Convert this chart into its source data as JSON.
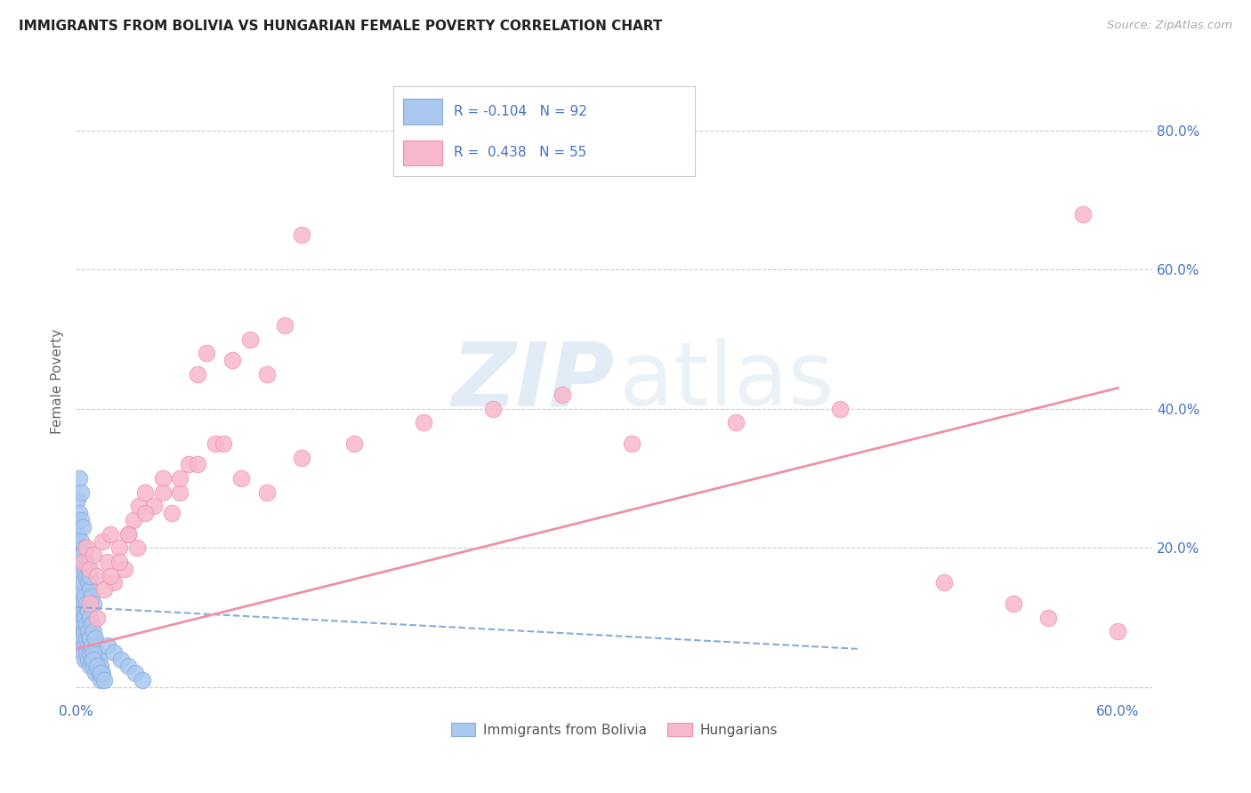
{
  "title": "IMMIGRANTS FROM BOLIVIA VS HUNGARIAN FEMALE POVERTY CORRELATION CHART",
  "source": "Source: ZipAtlas.com",
  "ylabel": "Female Poverty",
  "xlim": [
    0.0,
    0.62
  ],
  "ylim": [
    -0.02,
    0.9
  ],
  "yticks": [
    0.0,
    0.2,
    0.4,
    0.6,
    0.8
  ],
  "ytick_labels": [
    "",
    "20.0%",
    "40.0%",
    "60.0%",
    "80.0%"
  ],
  "xticks": [
    0.0,
    0.1,
    0.2,
    0.3,
    0.4,
    0.5,
    0.6
  ],
  "xtick_labels": [
    "0.0%",
    "",
    "",
    "",
    "",
    "",
    "60.0%"
  ],
  "grid_color": "#cccccc",
  "background_color": "#ffffff",
  "blue_label": "Immigrants from Bolivia",
  "pink_label": "Hungarians",
  "blue_R": "-0.104",
  "blue_N": "92",
  "pink_R": "0.438",
  "pink_N": "55",
  "blue_color": "#aac8f0",
  "pink_color": "#f8b8cc",
  "blue_edge": "#88aadd",
  "pink_edge": "#f090a8",
  "axis_color": "#4472c4",
  "title_color": "#222222",
  "blue_scatter_x": [
    0.001,
    0.001,
    0.002,
    0.002,
    0.002,
    0.003,
    0.003,
    0.003,
    0.003,
    0.004,
    0.004,
    0.004,
    0.004,
    0.005,
    0.005,
    0.005,
    0.005,
    0.006,
    0.006,
    0.006,
    0.007,
    0.007,
    0.007,
    0.008,
    0.008,
    0.008,
    0.009,
    0.009,
    0.01,
    0.01,
    0.01,
    0.011,
    0.011,
    0.012,
    0.012,
    0.013,
    0.013,
    0.014,
    0.014,
    0.015,
    0.001,
    0.002,
    0.002,
    0.003,
    0.003,
    0.004,
    0.004,
    0.005,
    0.005,
    0.006,
    0.006,
    0.007,
    0.007,
    0.008,
    0.008,
    0.009,
    0.009,
    0.01,
    0.01,
    0.011,
    0.001,
    0.002,
    0.003,
    0.004,
    0.005,
    0.006,
    0.007,
    0.008,
    0.009,
    0.01,
    0.001,
    0.002,
    0.003,
    0.004,
    0.003,
    0.005,
    0.006,
    0.007,
    0.008,
    0.004,
    0.002,
    0.003,
    0.018,
    0.022,
    0.026,
    0.03,
    0.034,
    0.038,
    0.01,
    0.012,
    0.014,
    0.016
  ],
  "blue_scatter_y": [
    0.08,
    0.11,
    0.09,
    0.13,
    0.07,
    0.1,
    0.12,
    0.08,
    0.06,
    0.09,
    0.11,
    0.07,
    0.05,
    0.1,
    0.08,
    0.06,
    0.04,
    0.09,
    0.07,
    0.05,
    0.08,
    0.06,
    0.04,
    0.07,
    0.05,
    0.03,
    0.06,
    0.04,
    0.05,
    0.03,
    0.07,
    0.04,
    0.02,
    0.03,
    0.05,
    0.04,
    0.02,
    0.03,
    0.01,
    0.02,
    0.15,
    0.16,
    0.13,
    0.14,
    0.17,
    0.15,
    0.12,
    0.13,
    0.1,
    0.12,
    0.09,
    0.11,
    0.08,
    0.1,
    0.07,
    0.09,
    0.06,
    0.08,
    0.05,
    0.07,
    0.22,
    0.2,
    0.19,
    0.18,
    0.17,
    0.16,
    0.15,
    0.14,
    0.13,
    0.12,
    0.27,
    0.25,
    0.24,
    0.23,
    0.21,
    0.2,
    0.18,
    0.17,
    0.16,
    0.19,
    0.3,
    0.28,
    0.06,
    0.05,
    0.04,
    0.03,
    0.02,
    0.01,
    0.04,
    0.03,
    0.02,
    0.01
  ],
  "pink_scatter_x": [
    0.004,
    0.006,
    0.008,
    0.01,
    0.012,
    0.015,
    0.018,
    0.02,
    0.022,
    0.025,
    0.028,
    0.03,
    0.033,
    0.036,
    0.04,
    0.045,
    0.05,
    0.055,
    0.06,
    0.065,
    0.07,
    0.075,
    0.08,
    0.09,
    0.1,
    0.11,
    0.12,
    0.13,
    0.008,
    0.012,
    0.016,
    0.02,
    0.025,
    0.03,
    0.035,
    0.04,
    0.05,
    0.06,
    0.07,
    0.085,
    0.095,
    0.11,
    0.13,
    0.16,
    0.2,
    0.24,
    0.28,
    0.32,
    0.38,
    0.44,
    0.5,
    0.54,
    0.56,
    0.58,
    0.6
  ],
  "pink_scatter_y": [
    0.18,
    0.2,
    0.17,
    0.19,
    0.16,
    0.21,
    0.18,
    0.22,
    0.15,
    0.2,
    0.17,
    0.22,
    0.24,
    0.26,
    0.28,
    0.26,
    0.3,
    0.25,
    0.28,
    0.32,
    0.45,
    0.48,
    0.35,
    0.47,
    0.5,
    0.45,
    0.52,
    0.65,
    0.12,
    0.1,
    0.14,
    0.16,
    0.18,
    0.22,
    0.2,
    0.25,
    0.28,
    0.3,
    0.32,
    0.35,
    0.3,
    0.28,
    0.33,
    0.35,
    0.38,
    0.4,
    0.42,
    0.35,
    0.38,
    0.4,
    0.15,
    0.12,
    0.1,
    0.68,
    0.08
  ],
  "blue_trend_x": [
    0.0,
    0.45
  ],
  "blue_trend_y": [
    0.115,
    0.055
  ],
  "pink_trend_x": [
    0.0,
    0.6
  ],
  "pink_trend_y": [
    0.055,
    0.43
  ]
}
